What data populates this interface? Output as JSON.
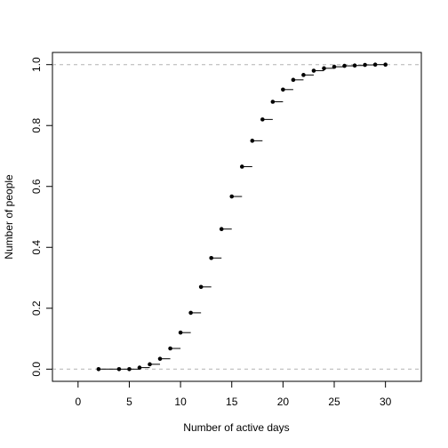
{
  "chart_data": {
    "type": "scatter",
    "style": "empirical-cdf-step",
    "title": "",
    "xlabel": "Number of active days",
    "ylabel": "Number of people",
    "xlim": [
      -2.5,
      33.5
    ],
    "ylim": [
      -0.04,
      1.04
    ],
    "x_ticks": [
      0,
      5,
      10,
      15,
      20,
      25,
      30
    ],
    "y_ticks": [
      0.0,
      0.2,
      0.4,
      0.6,
      0.8,
      1.0
    ],
    "x_tick_labels": [
      "0",
      "5",
      "10",
      "15",
      "20",
      "25",
      "30"
    ],
    "y_tick_labels": [
      "0.0",
      "0.2",
      "0.4",
      "0.6",
      "0.8",
      "1.0"
    ],
    "reference_lines": [
      0,
      1
    ],
    "reference_line_color": "#b3b3b3",
    "point_color": "#000000",
    "grid": false,
    "legend": "none",
    "points": [
      {
        "x": 2,
        "y": 0.0
      },
      {
        "x": 4,
        "y": 0.0
      },
      {
        "x": 5,
        "y": 0.0
      },
      {
        "x": 6,
        "y": 0.005
      },
      {
        "x": 7,
        "y": 0.016
      },
      {
        "x": 8,
        "y": 0.034
      },
      {
        "x": 9,
        "y": 0.068
      },
      {
        "x": 10,
        "y": 0.12
      },
      {
        "x": 11,
        "y": 0.185
      },
      {
        "x": 12,
        "y": 0.27
      },
      {
        "x": 13,
        "y": 0.365
      },
      {
        "x": 14,
        "y": 0.46
      },
      {
        "x": 15,
        "y": 0.567
      },
      {
        "x": 16,
        "y": 0.665
      },
      {
        "x": 17,
        "y": 0.75
      },
      {
        "x": 18,
        "y": 0.82
      },
      {
        "x": 19,
        "y": 0.878
      },
      {
        "x": 20,
        "y": 0.918
      },
      {
        "x": 21,
        "y": 0.95
      },
      {
        "x": 22,
        "y": 0.966
      },
      {
        "x": 23,
        "y": 0.98
      },
      {
        "x": 24,
        "y": 0.988
      },
      {
        "x": 25,
        "y": 0.993
      },
      {
        "x": 26,
        "y": 0.996
      },
      {
        "x": 27,
        "y": 0.997
      },
      {
        "x": 28,
        "y": 0.999
      },
      {
        "x": 29,
        "y": 1.0
      },
      {
        "x": 30,
        "y": 1.0
      }
    ]
  }
}
